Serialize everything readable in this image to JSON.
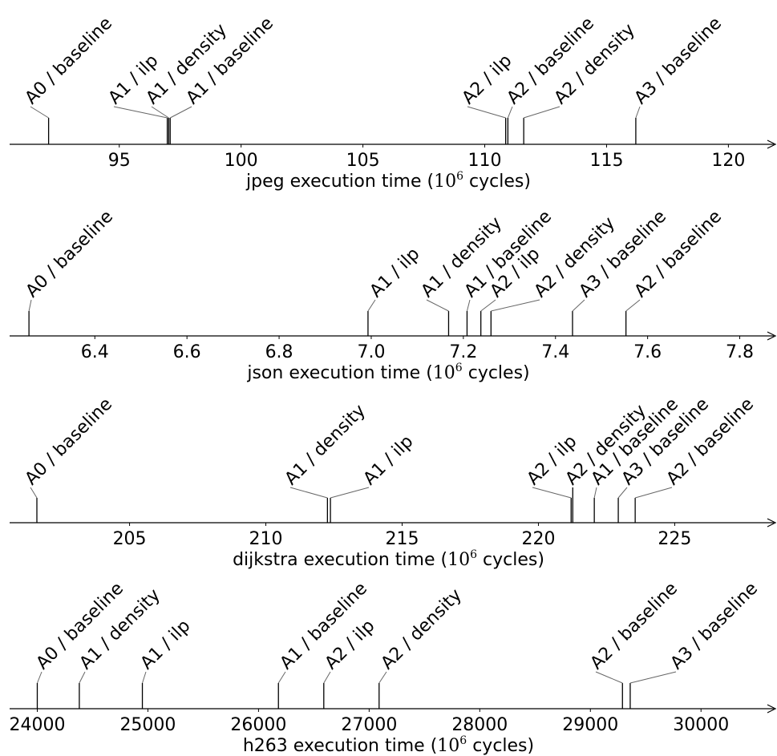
{
  "chart_data": [
    {
      "type": "timeline",
      "xlabel": "jpeg execution time",
      "unit_label": "cycles",
      "unit_exponent": "6",
      "xlim": [
        90.5,
        121.6
      ],
      "ticks": [
        "95",
        "100",
        "105",
        "110",
        "115",
        "120"
      ],
      "tick_values": [
        95,
        100,
        105,
        110,
        115,
        120
      ],
      "events": [
        {
          "label": "A0 / baseline",
          "x": 92.1
        },
        {
          "label": "A1 / ilp",
          "x": 96.97
        },
        {
          "label": "A1 / density",
          "x": 97.03
        },
        {
          "label": "A1 / baseline",
          "x": 97.09
        },
        {
          "label": "A2 / ilp",
          "x": 110.86
        },
        {
          "label": "A2 / baseline",
          "x": 110.95
        },
        {
          "label": "A2 / density",
          "x": 111.6
        },
        {
          "label": "A3 / baseline",
          "x": 116.2
        }
      ]
    },
    {
      "type": "timeline",
      "xlabel": "json execution time",
      "unit_label": "cycles",
      "unit_exponent": "6",
      "xlim": [
        6.215,
        7.86
      ],
      "ticks": [
        "6.4",
        "6.6",
        "6.8",
        "7.0",
        "7.2",
        "7.4",
        "7.6",
        "7.8"
      ],
      "tick_values": [
        6.4,
        6.6,
        6.8,
        7.0,
        7.2,
        7.4,
        7.6,
        7.8
      ],
      "events": [
        {
          "label": "A0 / baseline",
          "x": 6.257
        },
        {
          "label": "A1 / ilp",
          "x": 6.993
        },
        {
          "label": "A1 / density",
          "x": 7.168
        },
        {
          "label": "A1 / baseline",
          "x": 7.208
        },
        {
          "label": "A2 / ilp",
          "x": 7.238
        },
        {
          "label": "A2 / density",
          "x": 7.26
        },
        {
          "label": "A3 / baseline",
          "x": 7.437
        },
        {
          "label": "A2 / baseline",
          "x": 7.553
        }
      ]
    },
    {
      "type": "timeline",
      "xlabel": "dijkstra execution time",
      "unit_label": "cycles",
      "unit_exponent": "6",
      "xlim": [
        200.6,
        228.4
      ],
      "ticks": [
        "205",
        "210",
        "215",
        "220",
        "225"
      ],
      "tick_values": [
        205,
        210,
        215,
        220,
        225
      ],
      "events": [
        {
          "label": "A0 / baseline",
          "x": 201.6
        },
        {
          "label": "A1 / density",
          "x": 212.26
        },
        {
          "label": "A1 / ilp",
          "x": 212.37
        },
        {
          "label": "A2 / ilp",
          "x": 221.2
        },
        {
          "label": "A2 / density",
          "x": 221.26
        },
        {
          "label": "A1 / baseline",
          "x": 222.05
        },
        {
          "label": "A3 / baseline",
          "x": 222.93
        },
        {
          "label": "A2 / baseline",
          "x": 223.55
        }
      ]
    },
    {
      "type": "timeline",
      "xlabel": "h263 execution time",
      "unit_label": "cycles",
      "unit_exponent": "6",
      "xlim": [
        23750,
        30600
      ],
      "ticks": [
        "24000",
        "25000",
        "26000",
        "27000",
        "28000",
        "29000",
        "30000"
      ],
      "tick_values": [
        24000,
        25000,
        26000,
        27000,
        28000,
        29000,
        30000
      ],
      "events": [
        {
          "label": "A0 / baseline",
          "x": 24000
        },
        {
          "label": "A1 / density",
          "x": 24380
        },
        {
          "label": "A1 / ilp",
          "x": 24950
        },
        {
          "label": "A1 / baseline",
          "x": 26180
        },
        {
          "label": "A2 / ilp",
          "x": 26590
        },
        {
          "label": "A2 / density",
          "x": 27090
        },
        {
          "label": "A2 / baseline",
          "x": 29290
        },
        {
          "label": "A3 / baseline",
          "x": 29360
        }
      ]
    }
  ]
}
